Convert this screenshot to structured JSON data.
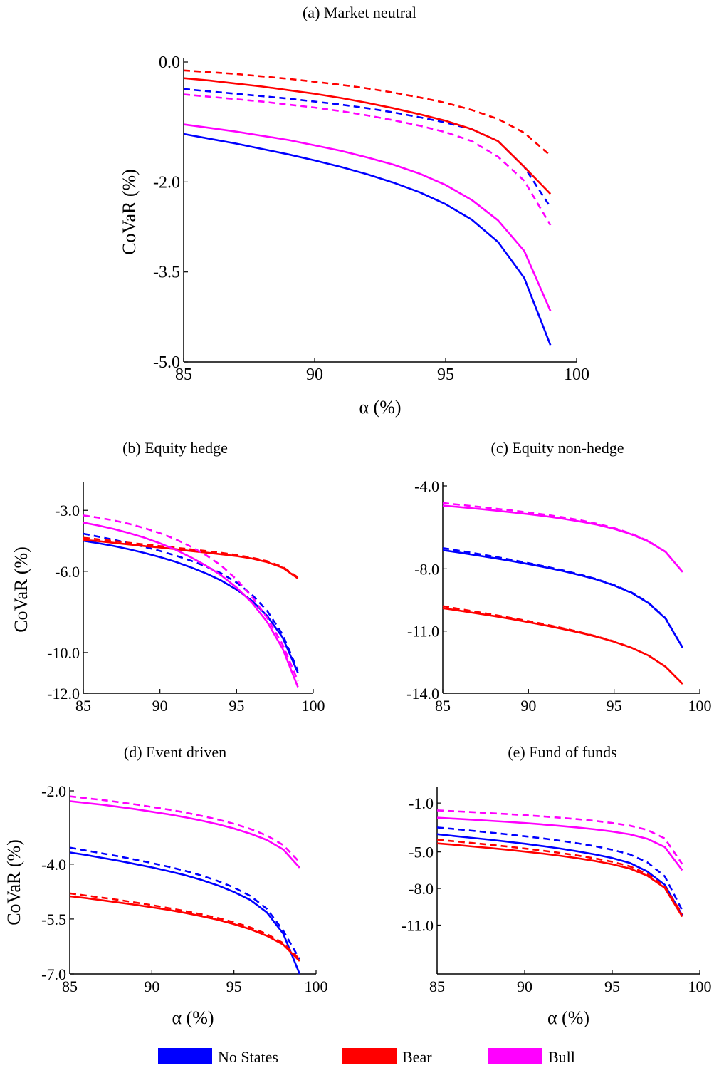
{
  "figure": {
    "legend": [
      {
        "label": "No States",
        "color": "#0000ff"
      },
      {
        "label": "Bear",
        "color": "#ff0000"
      },
      {
        "label": "Bull",
        "color": "#ff00ff"
      }
    ]
  },
  "chart_data": [
    {
      "type": "line",
      "title": "(a) Market neutral",
      "xlabel": "α (%)",
      "ylabel": "CoVaR (%)",
      "xlim": [
        85,
        100
      ],
      "ylim": [
        -5.0,
        0.0
      ],
      "xticks": [
        "85",
        "90",
        "95",
        "100"
      ],
      "yticks": [
        "0.0",
        "-2.0",
        "-3.5",
        "-5.0"
      ],
      "grid": false,
      "x": [
        85,
        86,
        87,
        88,
        89,
        90,
        91,
        92,
        93,
        94,
        95,
        96,
        97,
        98,
        99
      ],
      "series": [
        {
          "name": "No States",
          "style": "solid",
          "color": "#0000ff",
          "values": [
            -1.2,
            -1.28,
            -1.36,
            -1.45,
            -1.54,
            -1.64,
            -1.75,
            -1.87,
            -2.01,
            -2.17,
            -2.37,
            -2.63,
            -3.0,
            -3.6,
            -4.72
          ]
        },
        {
          "name": "No States",
          "style": "dashed",
          "color": "#0000ff",
          "values": [
            -0.45,
            -0.49,
            -0.53,
            -0.57,
            -0.61,
            -0.66,
            -0.71,
            -0.77,
            -0.84,
            -0.92,
            -1.01,
            -1.12,
            -1.32,
            -1.75,
            -2.42
          ]
        },
        {
          "name": "Bear",
          "style": "solid",
          "color": "#ff0000",
          "values": [
            -0.27,
            -0.31,
            -0.36,
            -0.41,
            -0.47,
            -0.53,
            -0.6,
            -0.68,
            -0.77,
            -0.87,
            -0.98,
            -1.12,
            -1.32,
            -1.75,
            -2.2
          ]
        },
        {
          "name": "Bear",
          "style": "dashed",
          "color": "#ff0000",
          "values": [
            -0.14,
            -0.17,
            -0.2,
            -0.24,
            -0.28,
            -0.33,
            -0.38,
            -0.44,
            -0.51,
            -0.59,
            -0.68,
            -0.8,
            -0.95,
            -1.18,
            -1.56
          ]
        },
        {
          "name": "Bull",
          "style": "solid",
          "color": "#ff00ff",
          "values": [
            -1.04,
            -1.1,
            -1.16,
            -1.23,
            -1.3,
            -1.39,
            -1.48,
            -1.59,
            -1.71,
            -1.86,
            -2.05,
            -2.3,
            -2.64,
            -3.15,
            -4.15
          ]
        },
        {
          "name": "Bull",
          "style": "dashed",
          "color": "#ff00ff",
          "values": [
            -0.54,
            -0.58,
            -0.62,
            -0.66,
            -0.71,
            -0.76,
            -0.82,
            -0.89,
            -0.97,
            -1.06,
            -1.17,
            -1.32,
            -1.58,
            -1.98,
            -2.72
          ]
        }
      ]
    },
    {
      "type": "line",
      "title": "(b) Equity hedge",
      "xlabel": "",
      "ylabel": "CoVaR (%)",
      "xlim": [
        85,
        100
      ],
      "ylim": [
        -12.0,
        -1.8
      ],
      "xticks": [
        "85",
        "90",
        "95",
        "100"
      ],
      "yticks": [
        "-3.0",
        "-6.0",
        "-10.0",
        "-12.0"
      ],
      "grid": false,
      "x": [
        85,
        86,
        87,
        88,
        89,
        90,
        91,
        92,
        93,
        94,
        95,
        96,
        97,
        98,
        99
      ],
      "series": [
        {
          "name": "No States",
          "style": "solid",
          "color": "#0000ff",
          "values": [
            -4.5,
            -4.62,
            -4.76,
            -4.92,
            -5.1,
            -5.3,
            -5.53,
            -5.8,
            -6.1,
            -6.45,
            -6.9,
            -7.45,
            -8.2,
            -9.25,
            -11.0
          ]
        },
        {
          "name": "No States",
          "style": "dashed",
          "color": "#0000ff",
          "values": [
            -4.15,
            -4.3,
            -4.45,
            -4.62,
            -4.8,
            -5.0,
            -5.22,
            -5.47,
            -5.76,
            -6.1,
            -6.55,
            -7.15,
            -7.95,
            -9.1,
            -10.9
          ]
        },
        {
          "name": "Bear",
          "style": "solid",
          "color": "#ff0000",
          "values": [
            -4.45,
            -4.52,
            -4.6,
            -4.68,
            -4.76,
            -4.83,
            -4.91,
            -5.0,
            -5.08,
            -5.16,
            -5.25,
            -5.37,
            -5.55,
            -5.82,
            -6.35
          ]
        },
        {
          "name": "Bear",
          "style": "dashed",
          "color": "#ff0000",
          "values": [
            -4.35,
            -4.43,
            -4.51,
            -4.6,
            -4.68,
            -4.76,
            -4.84,
            -4.92,
            -5.0,
            -5.09,
            -5.2,
            -5.33,
            -5.5,
            -5.78,
            -6.3
          ]
        },
        {
          "name": "Bull",
          "style": "solid",
          "color": "#ff00ff",
          "values": [
            -3.6,
            -3.75,
            -3.92,
            -4.12,
            -4.35,
            -4.62,
            -4.93,
            -5.3,
            -5.72,
            -6.2,
            -6.8,
            -7.55,
            -8.5,
            -9.8,
            -11.7
          ]
        },
        {
          "name": "Bull",
          "style": "dashed",
          "color": "#ff00ff",
          "values": [
            -3.25,
            -3.36,
            -3.5,
            -3.67,
            -3.88,
            -4.12,
            -4.42,
            -4.78,
            -5.2,
            -5.72,
            -6.4,
            -7.25,
            -8.3,
            -9.6,
            -11.4
          ]
        }
      ]
    },
    {
      "type": "line",
      "title": "(c) Equity non-hedge",
      "xlabel": "",
      "ylabel": "",
      "xlim": [
        85,
        100
      ],
      "ylim": [
        -14.0,
        -4.0
      ],
      "xticks": [
        "85",
        "90",
        "95",
        "100"
      ],
      "yticks": [
        "-4.0",
        "-8.0",
        "-11.0",
        "-14.0"
      ],
      "grid": false,
      "x": [
        85,
        86,
        87,
        88,
        89,
        90,
        91,
        92,
        93,
        94,
        95,
        96,
        97,
        98,
        99
      ],
      "series": [
        {
          "name": "No States",
          "style": "solid",
          "color": "#0000ff",
          "values": [
            -7.1,
            -7.22,
            -7.35,
            -7.48,
            -7.62,
            -7.77,
            -7.93,
            -8.1,
            -8.3,
            -8.52,
            -8.8,
            -9.15,
            -9.65,
            -10.4,
            -11.8
          ]
        },
        {
          "name": "No States",
          "style": "dashed",
          "color": "#0000ff",
          "values": [
            -7.0,
            -7.13,
            -7.27,
            -7.41,
            -7.56,
            -7.72,
            -7.89,
            -8.07,
            -8.27,
            -8.5,
            -8.78,
            -9.13,
            -9.63,
            -10.38,
            -11.8
          ]
        },
        {
          "name": "Bear",
          "style": "solid",
          "color": "#ff0000",
          "values": [
            -9.9,
            -10.02,
            -10.15,
            -10.28,
            -10.42,
            -10.57,
            -10.73,
            -10.9,
            -11.08,
            -11.28,
            -11.52,
            -11.8,
            -12.18,
            -12.72,
            -13.55
          ]
        },
        {
          "name": "Bear",
          "style": "dashed",
          "color": "#ff0000",
          "values": [
            -9.8,
            -9.94,
            -10.08,
            -10.22,
            -10.37,
            -10.52,
            -10.68,
            -10.86,
            -11.05,
            -11.26,
            -11.5,
            -11.8,
            -12.18,
            -12.72,
            -13.55
          ]
        },
        {
          "name": "Bull",
          "style": "solid",
          "color": "#ff00ff",
          "values": [
            -4.95,
            -5.02,
            -5.1,
            -5.18,
            -5.27,
            -5.36,
            -5.46,
            -5.58,
            -5.71,
            -5.87,
            -6.07,
            -6.33,
            -6.68,
            -7.18,
            -8.15
          ]
        },
        {
          "name": "Bull",
          "style": "dashed",
          "color": "#ff00ff",
          "values": [
            -4.82,
            -4.91,
            -5.0,
            -5.09,
            -5.18,
            -5.28,
            -5.39,
            -5.51,
            -5.65,
            -5.82,
            -6.03,
            -6.3,
            -6.66,
            -7.18,
            -8.15
          ]
        }
      ]
    },
    {
      "type": "line",
      "title": "(d) Event driven",
      "xlabel": "α (%)",
      "ylabel": "CoVaR (%)",
      "xlim": [
        85,
        100
      ],
      "ylim": [
        -7.0,
        -2.0
      ],
      "xticks": [
        "85",
        "90",
        "95",
        "100"
      ],
      "yticks": [
        "-2.0",
        "-4.0",
        "-5.5",
        "-7.0"
      ],
      "grid": false,
      "x": [
        85,
        86,
        87,
        88,
        89,
        90,
        91,
        92,
        93,
        94,
        95,
        96,
        97,
        98,
        99
      ],
      "series": [
        {
          "name": "No States",
          "style": "solid",
          "color": "#0000ff",
          "values": [
            -3.68,
            -3.75,
            -3.83,
            -3.91,
            -4.0,
            -4.09,
            -4.19,
            -4.3,
            -4.43,
            -4.58,
            -4.76,
            -4.98,
            -5.32,
            -5.9,
            -7.0
          ]
        },
        {
          "name": "No States",
          "style": "dashed",
          "color": "#0000ff",
          "values": [
            -3.55,
            -3.63,
            -3.71,
            -3.79,
            -3.88,
            -3.97,
            -4.07,
            -4.18,
            -4.31,
            -4.46,
            -4.64,
            -4.87,
            -5.22,
            -5.82,
            -6.6
          ]
        },
        {
          "name": "Bear",
          "style": "solid",
          "color": "#ff0000",
          "values": [
            -4.88,
            -4.93,
            -4.99,
            -5.05,
            -5.11,
            -5.18,
            -5.25,
            -5.33,
            -5.42,
            -5.52,
            -5.64,
            -5.78,
            -5.96,
            -6.2,
            -6.65
          ]
        },
        {
          "name": "Bear",
          "style": "dashed",
          "color": "#ff0000",
          "values": [
            -4.8,
            -4.86,
            -4.92,
            -4.98,
            -5.05,
            -5.12,
            -5.2,
            -5.28,
            -5.37,
            -5.47,
            -5.59,
            -5.73,
            -5.91,
            -6.16,
            -6.6
          ]
        },
        {
          "name": "Bull",
          "style": "solid",
          "color": "#ff00ff",
          "values": [
            -2.28,
            -2.33,
            -2.38,
            -2.44,
            -2.5,
            -2.57,
            -2.64,
            -2.72,
            -2.81,
            -2.91,
            -3.03,
            -3.17,
            -3.34,
            -3.6,
            -4.1
          ]
        },
        {
          "name": "Bull",
          "style": "dashed",
          "color": "#ff00ff",
          "values": [
            -2.15,
            -2.2,
            -2.25,
            -2.31,
            -2.37,
            -2.44,
            -2.51,
            -2.59,
            -2.68,
            -2.78,
            -2.9,
            -3.04,
            -3.22,
            -3.48,
            -3.95
          ]
        }
      ]
    },
    {
      "type": "line",
      "title": "(e) Fund of funds",
      "xlabel": "α (%)",
      "ylabel": "",
      "xlim": [
        85,
        100
      ],
      "ylim": [
        -15.0,
        0.0
      ],
      "xticks": [
        "85",
        "90",
        "95",
        "100"
      ],
      "yticks": [
        "-1.0",
        "-5.0",
        "-8.0",
        "-11.0"
      ],
      "grid": false,
      "x": [
        85,
        86,
        87,
        88,
        89,
        90,
        91,
        92,
        93,
        94,
        95,
        96,
        97,
        98,
        99
      ],
      "series": [
        {
          "name": "No States",
          "style": "solid",
          "color": "#0000ff",
          "values": [
            -3.55,
            -3.7,
            -3.85,
            -4.0,
            -4.16,
            -4.33,
            -4.52,
            -4.72,
            -4.95,
            -5.2,
            -5.5,
            -5.9,
            -6.6,
            -7.7,
            -10.2
          ]
        },
        {
          "name": "No States",
          "style": "dashed",
          "color": "#0000ff",
          "values": [
            -3.0,
            -3.13,
            -3.27,
            -3.41,
            -3.56,
            -3.72,
            -3.89,
            -4.08,
            -4.29,
            -4.53,
            -4.82,
            -5.2,
            -5.85,
            -7.0,
            -9.8
          ]
        },
        {
          "name": "Bear",
          "style": "solid",
          "color": "#ff0000",
          "values": [
            -4.3,
            -4.42,
            -4.55,
            -4.68,
            -4.82,
            -4.97,
            -5.13,
            -5.31,
            -5.51,
            -5.74,
            -6.01,
            -6.36,
            -6.95,
            -7.95,
            -10.3
          ]
        },
        {
          "name": "Bear",
          "style": "dashed",
          "color": "#ff0000",
          "values": [
            -4.0,
            -4.13,
            -4.27,
            -4.41,
            -4.56,
            -4.72,
            -4.89,
            -5.08,
            -5.29,
            -5.53,
            -5.81,
            -6.18,
            -6.8,
            -7.85,
            -10.1
          ]
        },
        {
          "name": "Bull",
          "style": "solid",
          "color": "#ff00ff",
          "values": [
            -2.2,
            -2.28,
            -2.36,
            -2.45,
            -2.54,
            -2.64,
            -2.75,
            -2.87,
            -3.0,
            -3.15,
            -3.33,
            -3.56,
            -3.92,
            -4.6,
            -6.5
          ]
        },
        {
          "name": "Bull",
          "style": "dashed",
          "color": "#ff00ff",
          "values": [
            -1.6,
            -1.67,
            -1.74,
            -1.82,
            -1.9,
            -1.99,
            -2.09,
            -2.2,
            -2.32,
            -2.46,
            -2.63,
            -2.85,
            -3.2,
            -3.9,
            -6.0
          ]
        }
      ]
    }
  ]
}
